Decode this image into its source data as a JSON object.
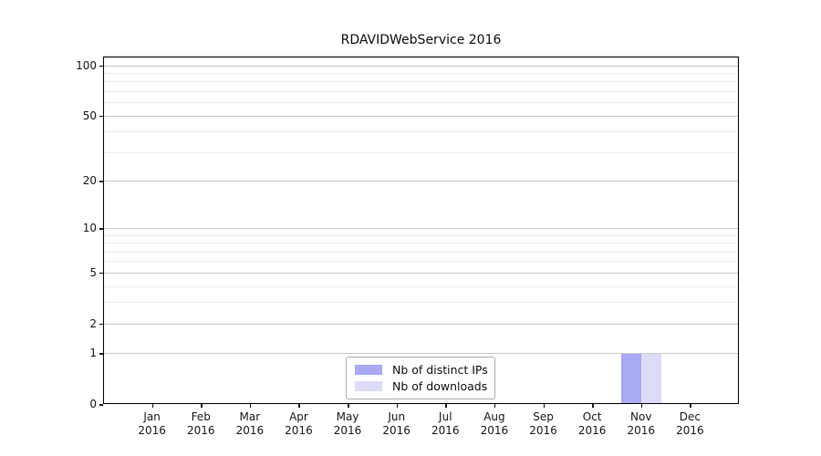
{
  "chart_data": {
    "type": "bar",
    "title": "RDAVIDWebService 2016",
    "x": {
      "months": [
        "Jan",
        "Feb",
        "Mar",
        "Apr",
        "May",
        "Jun",
        "Jul",
        "Aug",
        "Sep",
        "Oct",
        "Nov",
        "Dec"
      ],
      "year": "2016"
    },
    "yaxis": {
      "scale": "log1p",
      "major_ticks": [
        0,
        1,
        2,
        5,
        10,
        20,
        50,
        100
      ],
      "minor_ticks": [
        3,
        4,
        6,
        7,
        8,
        9,
        30,
        40,
        60,
        70,
        80,
        90
      ],
      "ylim": [
        0,
        113
      ],
      "grid": true
    },
    "series": [
      {
        "name": "Nb of distinct IPs",
        "color": "#a9a9f4",
        "values": [
          0,
          0,
          0,
          0,
          0,
          0,
          0,
          0,
          0,
          0,
          1,
          0
        ]
      },
      {
        "name": "Nb of downloads",
        "color": "#dcdcf8",
        "values": [
          0,
          0,
          0,
          0,
          0,
          0,
          0,
          0,
          0,
          0,
          1,
          0
        ]
      }
    ],
    "legend": {
      "position": "lower center"
    }
  },
  "colors": {
    "axis": "#000000",
    "major_grid": "#c9c9c9",
    "minor_grid": "#ededed",
    "text": "#1a1a1a",
    "background": "#ffffff"
  }
}
